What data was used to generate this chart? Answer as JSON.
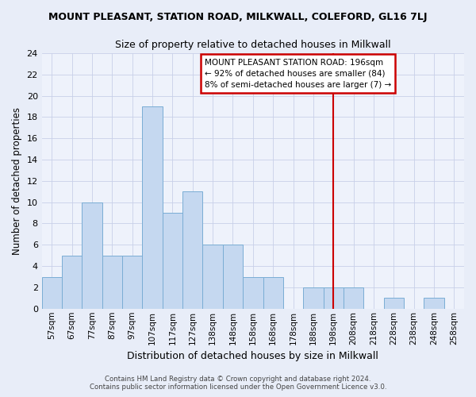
{
  "title": "MOUNT PLEASANT, STATION ROAD, MILKWALL, COLEFORD, GL16 7LJ",
  "subtitle": "Size of property relative to detached houses in Milkwall",
  "xlabel": "Distribution of detached houses by size in Milkwall",
  "ylabel": "Number of detached properties",
  "categories": [
    "57sqm",
    "67sqm",
    "77sqm",
    "87sqm",
    "97sqm",
    "107sqm",
    "117sqm",
    "127sqm",
    "138sqm",
    "148sqm",
    "158sqm",
    "168sqm",
    "178sqm",
    "188sqm",
    "198sqm",
    "208sqm",
    "218sqm",
    "228sqm",
    "238sqm",
    "248sqm",
    "258sqm"
  ],
  "values": [
    3,
    5,
    10,
    5,
    5,
    19,
    9,
    11,
    6,
    6,
    3,
    3,
    0,
    2,
    2,
    2,
    0,
    1,
    0,
    1,
    0
  ],
  "bar_color": "#c5d8f0",
  "bar_edge_color": "#7aadd4",
  "grid_color": "#c8d0e8",
  "bg_outer": "#e8edf8",
  "bg_inner": "#eef2fb",
  "red_line_index": 14,
  "annotation_text": "MOUNT PLEASANT STATION ROAD: 196sqm\n← 92% of detached houses are smaller (84)\n8% of semi-detached houses are larger (7) →",
  "annotation_box_color": "#ffffff",
  "annotation_box_edge": "#cc0000",
  "ylim": [
    0,
    24
  ],
  "yticks": [
    0,
    2,
    4,
    6,
    8,
    10,
    12,
    14,
    16,
    18,
    20,
    22,
    24
  ],
  "footer1": "Contains HM Land Registry data © Crown copyright and database right 2024.",
  "footer2": "Contains public sector information licensed under the Open Government Licence v3.0."
}
